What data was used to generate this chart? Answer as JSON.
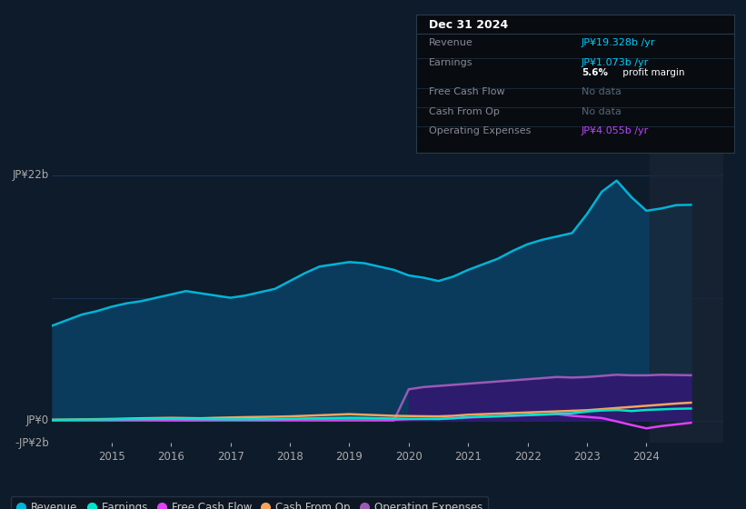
{
  "background_color": "#0d1b2a",
  "plot_bg_color": "#0d1b2a",
  "years": [
    2014.0,
    2014.25,
    2014.5,
    2014.75,
    2015.0,
    2015.25,
    2015.5,
    2015.75,
    2016.0,
    2016.25,
    2016.5,
    2016.75,
    2017.0,
    2017.25,
    2017.5,
    2017.75,
    2018.0,
    2018.25,
    2018.5,
    2018.75,
    2019.0,
    2019.25,
    2019.5,
    2019.75,
    2020.0,
    2020.25,
    2020.5,
    2020.75,
    2021.0,
    2021.25,
    2021.5,
    2021.75,
    2022.0,
    2022.25,
    2022.5,
    2022.75,
    2023.0,
    2023.25,
    2023.5,
    2023.75,
    2024.0,
    2024.25,
    2024.5,
    2024.75
  ],
  "revenue": [
    8.5,
    9.0,
    9.5,
    9.8,
    10.2,
    10.5,
    10.7,
    11.0,
    11.3,
    11.6,
    11.4,
    11.2,
    11.0,
    11.2,
    11.5,
    11.8,
    12.5,
    13.2,
    13.8,
    14.0,
    14.2,
    14.1,
    13.8,
    13.5,
    13.0,
    12.8,
    12.5,
    12.9,
    13.5,
    14.0,
    14.5,
    15.2,
    15.8,
    16.2,
    16.5,
    16.8,
    18.5,
    20.5,
    21.5,
    20.0,
    18.8,
    19.0,
    19.3,
    19.328
  ],
  "earnings": [
    0.05,
    0.07,
    0.08,
    0.09,
    0.1,
    0.12,
    0.13,
    0.14,
    0.15,
    0.14,
    0.13,
    0.12,
    0.1,
    0.11,
    0.12,
    0.13,
    0.15,
    0.18,
    0.2,
    0.22,
    0.25,
    0.23,
    0.2,
    0.18,
    0.15,
    0.14,
    0.13,
    0.2,
    0.3,
    0.35,
    0.4,
    0.45,
    0.5,
    0.55,
    0.6,
    0.65,
    0.8,
    0.9,
    0.95,
    0.85,
    0.95,
    1.0,
    1.05,
    1.073
  ],
  "free_cash_flow": [
    0.02,
    0.02,
    0.03,
    0.03,
    0.04,
    0.05,
    0.06,
    0.05,
    0.04,
    0.03,
    0.04,
    0.05,
    0.06,
    0.05,
    0.04,
    0.05,
    0.07,
    0.09,
    0.1,
    0.08,
    0.1,
    0.09,
    0.08,
    0.07,
    0.12,
    0.14,
    0.17,
    0.22,
    0.27,
    0.32,
    0.37,
    0.42,
    0.47,
    0.52,
    0.57,
    0.42,
    0.32,
    0.22,
    -0.08,
    -0.4,
    -0.7,
    -0.5,
    -0.35,
    -0.2
  ],
  "cash_from_op": [
    0.07,
    0.08,
    0.1,
    0.12,
    0.14,
    0.17,
    0.2,
    0.22,
    0.24,
    0.22,
    0.2,
    0.24,
    0.27,
    0.3,
    0.32,
    0.34,
    0.37,
    0.42,
    0.47,
    0.52,
    0.57,
    0.52,
    0.47,
    0.42,
    0.4,
    0.38,
    0.37,
    0.42,
    0.52,
    0.57,
    0.62,
    0.67,
    0.72,
    0.77,
    0.82,
    0.87,
    0.92,
    1.02,
    1.12,
    1.22,
    1.32,
    1.42,
    1.52,
    1.6
  ],
  "op_expenses": [
    0.0,
    0.0,
    0.0,
    0.0,
    0.0,
    0.0,
    0.0,
    0.0,
    0.0,
    0.0,
    0.0,
    0.0,
    0.0,
    0.0,
    0.0,
    0.0,
    0.0,
    0.0,
    0.0,
    0.0,
    0.0,
    0.0,
    0.0,
    0.0,
    2.8,
    3.0,
    3.1,
    3.2,
    3.3,
    3.4,
    3.5,
    3.6,
    3.7,
    3.8,
    3.9,
    3.85,
    3.9,
    4.0,
    4.1,
    4.05,
    4.05,
    4.1,
    4.08,
    4.055
  ],
  "revenue_color": "#00b4d8",
  "revenue_fill": "#0a3a5c",
  "earnings_color": "#00e5c8",
  "fcf_color": "#e040fb",
  "cash_op_color": "#f4a460",
  "op_exp_color": "#9b59b6",
  "op_exp_fill": "#2d1b6e",
  "ylim": [
    -2,
    24
  ],
  "xlim": [
    2014.0,
    2025.3
  ],
  "xticks": [
    2015,
    2016,
    2017,
    2018,
    2019,
    2020,
    2021,
    2022,
    2023,
    2024
  ],
  "legend": [
    {
      "label": "Revenue",
      "color": "#00b4d8"
    },
    {
      "label": "Earnings",
      "color": "#00e5c8"
    },
    {
      "label": "Free Cash Flow",
      "color": "#e040fb"
    },
    {
      "label": "Cash From Op",
      "color": "#f4a460"
    },
    {
      "label": "Operating Expenses",
      "color": "#9b59b6"
    }
  ],
  "infobox": {
    "title": "Dec 31 2024",
    "title_color": "#ffffff",
    "bg": "#080c10",
    "border": "#2a3a4a",
    "label_color": "#888899",
    "rows": [
      {
        "label": "Revenue",
        "value": "JP¥19.328b",
        "suffix": " /yr",
        "value_color": "#00ccff",
        "extra": null
      },
      {
        "label": "Earnings",
        "value": "JP¥1.073b",
        "suffix": " /yr",
        "value_color": "#00ccff",
        "extra": {
          "bold": "5.6%",
          "rest": " profit margin",
          "color": "#ffffff"
        }
      },
      {
        "label": "Free Cash Flow",
        "value": "No data",
        "suffix": "",
        "value_color": "#556677",
        "extra": null
      },
      {
        "label": "Cash From Op",
        "value": "No data",
        "suffix": "",
        "value_color": "#556677",
        "extra": null
      },
      {
        "label": "Operating Expenses",
        "value": "JP¥4.055b",
        "suffix": " /yr",
        "value_color": "#bb44ff",
        "extra": null
      }
    ]
  }
}
